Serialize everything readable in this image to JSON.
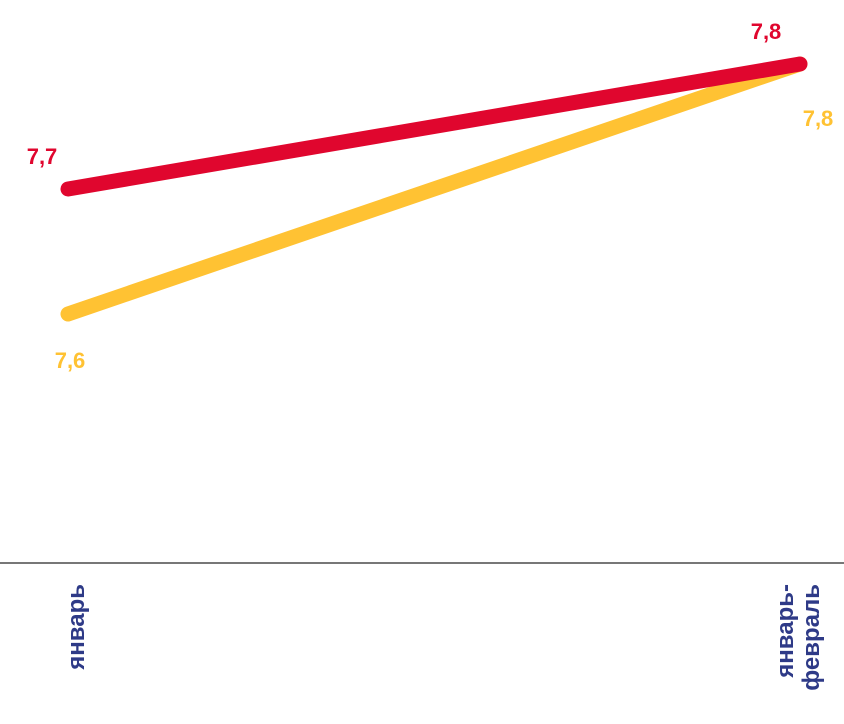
{
  "chart_data": {
    "type": "line",
    "categories": [
      [
        "январь"
      ],
      [
        "январь-",
        "февраль"
      ]
    ],
    "series": [
      {
        "color": "#E0062E",
        "values": [
          7.7,
          7.8
        ],
        "labels": [
          "7,7",
          "7,8"
        ]
      },
      {
        "color": "#FFC233",
        "values": [
          7.6,
          7.8
        ],
        "labels": [
          "7,6",
          "7,8"
        ]
      }
    ],
    "axis_color": "#777777",
    "category_label_color": "#2E3A87",
    "title": "",
    "xlabel": "",
    "ylabel": "",
    "grid": false,
    "legend": "none"
  }
}
